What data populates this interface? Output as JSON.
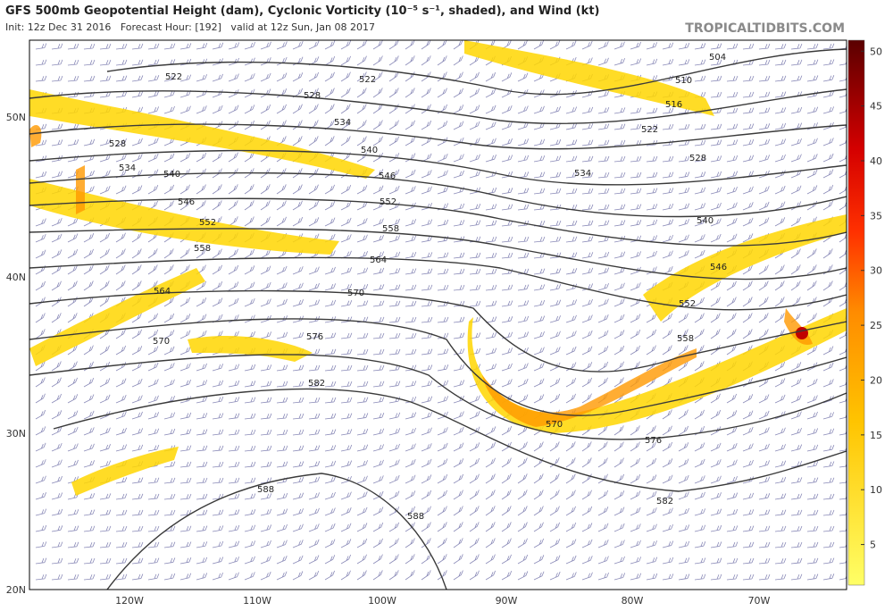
{
  "header": {
    "title": "GFS 500mb Geopotential Height (dam), Cyclonic Vorticity (10⁻⁵ s⁻¹, shaded), and Wind (kt)",
    "subtitle": "Init: 12z Dec 31 2016   Forecast Hour: [192]   valid at 12z Sun, Jan 08 2017",
    "brand": "TROPICALTIDBITS.COM"
  },
  "map": {
    "latitudes": [
      "50N",
      "40N",
      "30N",
      "20N"
    ],
    "longitudes": [
      "120W",
      "110W",
      "100W",
      "90W",
      "80W",
      "70W"
    ],
    "contour_labels": [
      "522",
      "522",
      "528",
      "528",
      "528",
      "534",
      "534",
      "534",
      "540",
      "540",
      "540",
      "546",
      "546",
      "546",
      "552",
      "552",
      "552",
      "558",
      "558",
      "558",
      "564",
      "564",
      "570",
      "570",
      "570",
      "576",
      "576",
      "582",
      "582",
      "588",
      "588",
      "504",
      "510",
      "516",
      "522"
    ]
  },
  "colorbar": {
    "range": [
      1.3,
      51
    ],
    "ticks": [
      5,
      10,
      15,
      20,
      25,
      30,
      35,
      40,
      45,
      50
    ]
  }
}
